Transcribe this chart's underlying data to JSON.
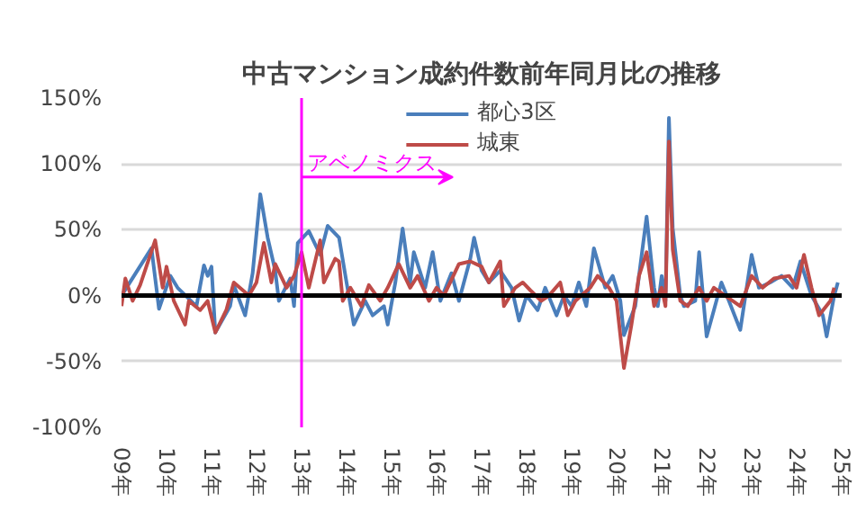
{
  "chart_data": {
    "type": "line",
    "title": "中古マンション成約件数前年同月比の推移",
    "xlim": [
      "2009-01",
      "2025-01"
    ],
    "xticks": [
      {
        "value": "2009-01",
        "label": "09年"
      },
      {
        "value": "2010-01",
        "label": "10年"
      },
      {
        "value": "2011-01",
        "label": "11年"
      },
      {
        "value": "2012-01",
        "label": "12年"
      },
      {
        "value": "2013-01",
        "label": "13年"
      },
      {
        "value": "2014-01",
        "label": "14年"
      },
      {
        "value": "2015-01",
        "label": "15年"
      },
      {
        "value": "2016-01",
        "label": "16年"
      },
      {
        "value": "2017-01",
        "label": "17年"
      },
      {
        "value": "2018-01",
        "label": "18年"
      },
      {
        "value": "2019-01",
        "label": "19年"
      },
      {
        "value": "2020-01",
        "label": "20年"
      },
      {
        "value": "2021-01",
        "label": "21年"
      },
      {
        "value": "2022-01",
        "label": "22年"
      },
      {
        "value": "2023-01",
        "label": "23年"
      },
      {
        "value": "2024-01",
        "label": "24年"
      },
      {
        "value": "2025-01",
        "label": "25年"
      }
    ],
    "ylim": [
      -100,
      150
    ],
    "yticks": [
      {
        "value": -100,
        "label": "-100%"
      },
      {
        "value": -50,
        "label": "-50%"
      },
      {
        "value": 0,
        "label": "0%"
      },
      {
        "value": 50,
        "label": "50%"
      },
      {
        "value": 100,
        "label": "100%"
      },
      {
        "value": 150,
        "label": "150%"
      }
    ],
    "grid": "y",
    "legend": "top",
    "marker": "none",
    "line_style": "solid",
    "ref_lines": [
      {
        "axis": "y",
        "value": 0,
        "color": "#000000"
      },
      {
        "axis": "x",
        "value": "2013-01",
        "label": "アベノミクス",
        "color": "#ff00ff"
      }
    ],
    "series": [
      {
        "name": "都心3区",
        "color": "#4a7ebb",
        "x": [
          "2009-01",
          "2009-09",
          "2009-11",
          "2010-02",
          "2010-04",
          "2010-09",
          "2010-11",
          "2010-12",
          "2011-01",
          "2011-02",
          "2011-06",
          "2011-07",
          "2011-10",
          "2011-12",
          "2012-02",
          "2012-04",
          "2012-06",
          "2012-07",
          "2012-10",
          "2012-11",
          "2012-12",
          "2013-03",
          "2013-06",
          "2013-08",
          "2013-11",
          "2014-01",
          "2014-03",
          "2014-06",
          "2014-08",
          "2014-11",
          "2014-12",
          "2015-02",
          "2015-04",
          "2015-06",
          "2015-07",
          "2015-10",
          "2015-12",
          "2016-02",
          "2016-05",
          "2016-07",
          "2016-10",
          "2016-11",
          "2017-01",
          "2017-03",
          "2017-06",
          "2017-09",
          "2017-11",
          "2018-01",
          "2018-04",
          "2018-06",
          "2018-09",
          "2018-11",
          "2019-01",
          "2019-03",
          "2019-05",
          "2019-07",
          "2019-10",
          "2019-12",
          "2020-02",
          "2020-03",
          "2020-06",
          "2020-07",
          "2020-09",
          "2020-11",
          "2020-12",
          "2021-01",
          "2021-02",
          "2021-03",
          "2021-04",
          "2021-06",
          "2021-07",
          "2021-10",
          "2021-11",
          "2022-01",
          "2022-03",
          "2022-05",
          "2022-07",
          "2022-10",
          "2023-01",
          "2023-03",
          "2023-06",
          "2023-09",
          "2023-12",
          "2024-02",
          "2024-05",
          "2024-08",
          "2024-09",
          "2024-11",
          "2024-12"
        ],
        "values": [
          0,
          36,
          -10,
          15,
          6,
          -8,
          23,
          15,
          22,
          -28,
          -8,
          8,
          -15,
          17,
          77,
          44,
          19,
          -4,
          13,
          -8,
          40,
          49,
          31,
          53,
          44,
          10,
          -22,
          -4,
          -15,
          -8,
          -22,
          10,
          51,
          10,
          33,
          6,
          33,
          -4,
          17,
          -4,
          28,
          44,
          19,
          10,
          19,
          6,
          -19,
          0,
          -11,
          6,
          -15,
          0,
          -8,
          10,
          -8,
          36,
          6,
          15,
          -4,
          -30,
          -8,
          15,
          60,
          6,
          -8,
          15,
          -4,
          135,
          51,
          0,
          -8,
          -4,
          33,
          -31,
          -11,
          10,
          -4,
          -26,
          31,
          6,
          10,
          15,
          6,
          26,
          0,
          -15,
          -31,
          0,
          10
        ]
      },
      {
        "name": "城東",
        "color": "#be4b48",
        "x": [
          "2009-01",
          "2009-02",
          "2009-04",
          "2009-06",
          "2009-10",
          "2009-11",
          "2009-12",
          "2010-01",
          "2010-03",
          "2010-06",
          "2010-07",
          "2010-10",
          "2010-12",
          "2011-02",
          "2011-05",
          "2011-07",
          "2011-11",
          "2012-01",
          "2012-03",
          "2012-05",
          "2012-06",
          "2012-09",
          "2012-11",
          "2013-01",
          "2013-03",
          "2013-06",
          "2013-07",
          "2013-10",
          "2013-11",
          "2013-12",
          "2014-02",
          "2014-05",
          "2014-07",
          "2014-10",
          "2014-12",
          "2015-03",
          "2015-06",
          "2015-08",
          "2015-11",
          "2016-01",
          "2016-03",
          "2016-07",
          "2016-10",
          "2017-01",
          "2017-03",
          "2017-06",
          "2017-07",
          "2017-10",
          "2017-12",
          "2018-02",
          "2018-05",
          "2018-07",
          "2018-10",
          "2018-12",
          "2019-02",
          "2019-06",
          "2019-08",
          "2019-11",
          "2020-01",
          "2020-03",
          "2020-05",
          "2020-07",
          "2020-09",
          "2020-11",
          "2021-01",
          "2021-02",
          "2021-03",
          "2021-04",
          "2021-06",
          "2021-08",
          "2021-11",
          "2022-01",
          "2022-03",
          "2022-06",
          "2022-10",
          "2023-01",
          "2023-04",
          "2023-07",
          "2023-11",
          "2024-01",
          "2024-03",
          "2024-05",
          "2024-07",
          "2024-10",
          "2024-11"
        ],
        "values": [
          -8,
          13,
          -4,
          8,
          42,
          24,
          6,
          22,
          -4,
          -22,
          -4,
          -11,
          -4,
          -28,
          -11,
          10,
          0,
          10,
          40,
          10,
          24,
          6,
          15,
          33,
          6,
          42,
          10,
          28,
          26,
          -4,
          6,
          -8,
          8,
          -4,
          6,
          24,
          6,
          15,
          -4,
          6,
          0,
          24,
          26,
          22,
          10,
          26,
          -8,
          6,
          10,
          4,
          -4,
          0,
          10,
          -15,
          -4,
          6,
          15,
          6,
          -4,
          -55,
          -22,
          15,
          33,
          -8,
          6,
          -8,
          117,
          35,
          -4,
          -8,
          6,
          -4,
          6,
          0,
          -8,
          15,
          6,
          13,
          15,
          6,
          31,
          6,
          -15,
          -4,
          6
        ]
      }
    ]
  }
}
